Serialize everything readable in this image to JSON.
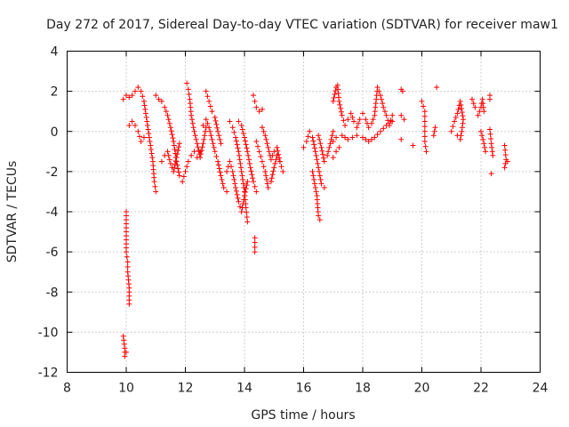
{
  "chart_data": {
    "type": "scatter",
    "title": "Day 272 of 2017, Sidereal Day-to-day VTEC variation (SDTVAR) for receiver maw1",
    "xlabel": "GPS time / hours",
    "ylabel": "SDTVAR / TECUs",
    "xlim": [
      8,
      24
    ],
    "ylim": [
      -12,
      4
    ],
    "xticks": [
      8,
      10,
      12,
      14,
      16,
      18,
      20,
      22,
      24
    ],
    "yticks": [
      -12,
      -10,
      -8,
      -6,
      -4,
      -2,
      0,
      2,
      4
    ],
    "xtick_labels": [
      "8",
      "10",
      "12",
      "14",
      "16",
      "18",
      "20",
      "22",
      "24"
    ],
    "ytick_labels": [
      "-12",
      "-10",
      "-8",
      "-6",
      "-4",
      "-2",
      "0",
      "2",
      "4"
    ],
    "grid": true,
    "marker": "+",
    "marker_color": "#ff0000",
    "series": [
      {
        "name": "SDTVAR",
        "description": "dense red plus-marker trajectories, approximated here by sampled points",
        "segments": [
          [
            [
              9.9,
              1.6
            ],
            [
              10.0,
              1.8
            ],
            [
              10.1,
              1.7
            ],
            [
              10.2,
              1.8
            ],
            [
              10.3,
              2.0
            ],
            [
              10.4,
              2.2
            ],
            [
              10.5,
              2.0
            ],
            [
              10.6,
              1.5
            ],
            [
              10.7,
              0.5
            ],
            [
              10.8,
              -0.5
            ],
            [
              10.9,
              -1.5
            ],
            [
              10.95,
              -2.5
            ],
            [
              11.0,
              -3.0
            ]
          ],
          [
            [
              10.0,
              -4.0
            ],
            [
              10.0,
              -5.0
            ],
            [
              10.0,
              -6.0
            ],
            [
              10.05,
              -6.5
            ],
            [
              10.05,
              -7.0
            ],
            [
              10.1,
              -7.8
            ],
            [
              10.1,
              -8.2
            ],
            [
              10.1,
              -8.6
            ]
          ],
          [
            [
              9.9,
              -10.2
            ],
            [
              9.95,
              -10.8
            ],
            [
              9.95,
              -11.2
            ],
            [
              10.0,
              -11.0
            ]
          ],
          [
            [
              10.1,
              0.3
            ],
            [
              10.2,
              0.5
            ],
            [
              10.3,
              0.3
            ],
            [
              10.4,
              0.0
            ],
            [
              10.5,
              -0.5
            ],
            [
              10.6,
              -0.3
            ]
          ],
          [
            [
              11.0,
              1.8
            ],
            [
              11.1,
              1.6
            ],
            [
              11.2,
              1.5
            ],
            [
              11.3,
              1.2
            ],
            [
              11.4,
              0.8
            ],
            [
              11.5,
              0.2
            ],
            [
              11.6,
              -0.5
            ],
            [
              11.7,
              -1.5
            ],
            [
              11.8,
              -2.2
            ],
            [
              11.9,
              -2.5
            ],
            [
              12.0,
              -2.0
            ],
            [
              12.1,
              -1.5
            ],
            [
              12.2,
              -1.2
            ],
            [
              12.3,
              -1.0
            ],
            [
              12.4,
              -1.3
            ],
            [
              12.5,
              -1.0
            ]
          ],
          [
            [
              11.2,
              -1.5
            ],
            [
              11.3,
              -1.2
            ],
            [
              11.4,
              -1.0
            ],
            [
              11.5,
              -1.6
            ],
            [
              11.6,
              -2.0
            ],
            [
              11.7,
              -1.3
            ],
            [
              11.8,
              -0.6
            ]
          ],
          [
            [
              12.05,
              2.4
            ],
            [
              12.1,
              2.1
            ],
            [
              12.15,
              1.6
            ],
            [
              12.2,
              0.8
            ],
            [
              12.3,
              0.0
            ],
            [
              12.4,
              -0.6
            ],
            [
              12.5,
              -1.3
            ],
            [
              12.6,
              -0.6
            ],
            [
              12.7,
              0.2
            ]
          ],
          [
            [
              12.7,
              2.0
            ],
            [
              12.8,
              1.5
            ],
            [
              12.9,
              1.0
            ],
            [
              13.0,
              0.7
            ],
            [
              13.1,
              0.0
            ],
            [
              13.2,
              -0.6
            ]
          ],
          [
            [
              12.6,
              0.3
            ],
            [
              12.7,
              0.6
            ],
            [
              12.8,
              0.2
            ],
            [
              12.9,
              -0.4
            ],
            [
              13.0,
              -1.0
            ],
            [
              13.1,
              -1.5
            ],
            [
              13.2,
              -2.2
            ],
            [
              13.3,
              -2.8
            ],
            [
              13.4,
              -3.0
            ]
          ],
          [
            [
              13.5,
              0.5
            ],
            [
              13.6,
              0.2
            ],
            [
              13.7,
              -0.3
            ],
            [
              13.8,
              -1.0
            ],
            [
              13.9,
              -2.0
            ],
            [
              14.0,
              -3.0
            ],
            [
              14.05,
              -3.8
            ],
            [
              14.1,
              -4.5
            ]
          ],
          [
            [
              13.4,
              -2.0
            ],
            [
              13.5,
              -1.5
            ],
            [
              13.6,
              -2.0
            ],
            [
              13.7,
              -2.8
            ],
            [
              13.8,
              -3.5
            ],
            [
              13.9,
              -4.0
            ],
            [
              14.0,
              -3.2
            ],
            [
              14.1,
              -2.5
            ]
          ],
          [
            [
              13.8,
              0.5
            ],
            [
              13.9,
              0.3
            ],
            [
              14.0,
              -0.3
            ],
            [
              14.1,
              -1.0
            ],
            [
              14.2,
              -1.8
            ],
            [
              14.3,
              -2.5
            ],
            [
              14.4,
              -3.0
            ]
          ],
          [
            [
              14.3,
              1.8
            ],
            [
              14.35,
              1.5
            ],
            [
              14.4,
              1.2
            ],
            [
              14.5,
              1.0
            ],
            [
              14.6,
              1.1
            ]
          ],
          [
            [
              14.4,
              -0.5
            ],
            [
              14.5,
              -1.0
            ],
            [
              14.6,
              -1.5
            ],
            [
              14.7,
              -2.0
            ],
            [
              14.8,
              -2.8
            ],
            [
              14.9,
              -2.5
            ],
            [
              15.0,
              -1.8
            ],
            [
              15.1,
              -1.2
            ],
            [
              15.2,
              -1.5
            ],
            [
              15.3,
              -2.0
            ]
          ],
          [
            [
              14.6,
              0.2
            ],
            [
              14.7,
              -0.2
            ],
            [
              14.8,
              -0.8
            ],
            [
              14.9,
              -1.4
            ],
            [
              15.0,
              -1.0
            ],
            [
              15.1,
              -0.8
            ],
            [
              15.2,
              -1.5
            ]
          ],
          [
            [
              14.35,
              -5.3
            ],
            [
              14.35,
              -6.0
            ]
          ],
          [
            [
              16.0,
              -0.8
            ],
            [
              16.1,
              -0.5
            ],
            [
              16.2,
              0.0
            ],
            [
              16.3,
              -0.3
            ],
            [
              16.4,
              -1.0
            ],
            [
              16.5,
              -1.8
            ],
            [
              16.6,
              -2.6
            ],
            [
              16.7,
              -2.8
            ]
          ],
          [
            [
              16.3,
              -2.0
            ],
            [
              16.4,
              -2.8
            ],
            [
              16.45,
              -3.2
            ],
            [
              16.5,
              -4.2
            ],
            [
              16.55,
              -4.4
            ]
          ],
          [
            [
              16.5,
              -0.2
            ],
            [
              16.6,
              -0.8
            ],
            [
              16.7,
              -1.5
            ],
            [
              16.8,
              -1.2
            ],
            [
              16.9,
              -0.6
            ],
            [
              17.0,
              0.0
            ]
          ],
          [
            [
              17.0,
              1.5
            ],
            [
              17.1,
              2.2
            ],
            [
              17.15,
              2.3
            ],
            [
              17.2,
              1.5
            ],
            [
              17.3,
              0.8
            ],
            [
              17.4,
              0.3
            ],
            [
              17.5,
              0.6
            ],
            [
              17.6,
              0.9
            ],
            [
              17.7,
              0.5
            ],
            [
              17.8,
              0.2
            ],
            [
              17.9,
              0.6
            ],
            [
              18.0,
              0.9
            ],
            [
              18.1,
              0.6
            ],
            [
              18.2,
              0.2
            ],
            [
              18.3,
              0.4
            ],
            [
              18.4,
              0.8
            ],
            [
              18.5,
              2.2
            ],
            [
              18.6,
              1.8
            ],
            [
              18.7,
              1.2
            ],
            [
              18.8,
              0.8
            ],
            [
              18.9,
              0.3
            ],
            [
              19.0,
              0.8
            ]
          ],
          [
            [
              17.0,
              -0.5
            ],
            [
              17.1,
              -0.3
            ],
            [
              17.3,
              -0.2
            ],
            [
              17.5,
              -0.4
            ],
            [
              17.8,
              -0.2
            ],
            [
              18.0,
              -0.3
            ],
            [
              18.2,
              -0.5
            ],
            [
              18.4,
              -0.3
            ],
            [
              18.6,
              0.0
            ],
            [
              18.8,
              0.3
            ],
            [
              19.0,
              0.5
            ]
          ],
          [
            [
              17.0,
              -1.3
            ],
            [
              17.1,
              -1.0
            ],
            [
              17.2,
              -0.8
            ]
          ],
          [
            [
              19.3,
              2.1
            ],
            [
              19.35,
              2.0
            ]
          ],
          [
            [
              19.3,
              0.8
            ],
            [
              19.4,
              0.6
            ]
          ],
          [
            [
              19.3,
              -0.4
            ]
          ],
          [
            [
              19.7,
              -0.7
            ]
          ],
          [
            [
              20.0,
              1.5
            ],
            [
              20.1,
              1.0
            ],
            [
              20.1,
              0.5
            ],
            [
              20.1,
              0.0
            ],
            [
              20.1,
              -0.5
            ],
            [
              20.15,
              -1.0
            ]
          ],
          [
            [
              20.4,
              -0.2
            ],
            [
              20.45,
              0.2
            ]
          ],
          [
            [
              20.5,
              2.2
            ]
          ],
          [
            [
              21.0,
              0.0
            ],
            [
              21.1,
              0.5
            ],
            [
              21.2,
              0.9
            ],
            [
              21.3,
              1.5
            ],
            [
              21.4,
              0.6
            ],
            [
              21.35,
              0.0
            ],
            [
              21.3,
              -0.4
            ],
            [
              21.2,
              -0.2
            ]
          ],
          [
            [
              21.7,
              1.6
            ],
            [
              21.8,
              1.2
            ]
          ],
          [
            [
              21.9,
              0.8
            ],
            [
              22.0,
              1.2
            ],
            [
              22.05,
              1.6
            ],
            [
              22.1,
              1.0
            ]
          ],
          [
            [
              22.0,
              0.0
            ],
            [
              22.1,
              -0.6
            ],
            [
              22.15,
              -1.0
            ]
          ],
          [
            [
              22.3,
              1.8
            ],
            [
              22.3,
              1.6
            ]
          ],
          [
            [
              22.3,
              0.1
            ],
            [
              22.35,
              -0.6
            ],
            [
              22.4,
              -1.2
            ]
          ],
          [
            [
              22.35,
              -2.1
            ]
          ],
          [
            [
              22.8,
              -0.7
            ],
            [
              22.85,
              -1.4
            ],
            [
              22.8,
              -1.8
            ],
            [
              22.9,
              -1.5
            ]
          ]
        ]
      }
    ]
  }
}
